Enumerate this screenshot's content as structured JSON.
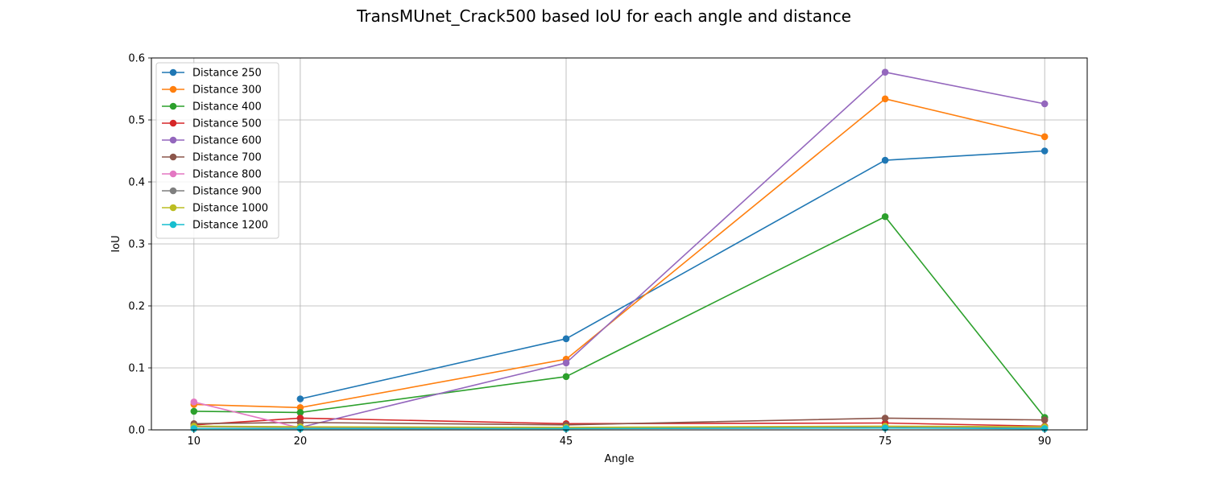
{
  "chart_data": {
    "type": "line",
    "title": "TransMUnet_Crack500 based IoU for each angle and distance",
    "xlabel": "Angle",
    "ylabel": "IoU",
    "x": [
      10,
      20,
      45,
      75,
      90
    ],
    "x_ticks": [
      "10",
      "20",
      "45",
      "75",
      "90"
    ],
    "xlim": [
      6,
      94
    ],
    "ylim": [
      0,
      0.6
    ],
    "y_ticks": [
      "0.0",
      "0.1",
      "0.2",
      "0.3",
      "0.4",
      "0.5",
      "0.6"
    ],
    "grid": true,
    "legend_position": "top-left",
    "series": [
      {
        "name": "Distance 250",
        "color": "#1f77b4",
        "values": [
          null,
          0.05,
          0.147,
          0.435,
          0.45
        ]
      },
      {
        "name": "Distance 300",
        "color": "#ff7f0e",
        "values": [
          0.041,
          0.036,
          0.114,
          0.534,
          0.473
        ]
      },
      {
        "name": "Distance 400",
        "color": "#2ca02c",
        "values": [
          0.03,
          0.028,
          0.086,
          0.344,
          0.02
        ]
      },
      {
        "name": "Distance 500",
        "color": "#d62728",
        "values": [
          0.008,
          0.019,
          0.01,
          0.011,
          0.006
        ]
      },
      {
        "name": "Distance 600",
        "color": "#9467bd",
        "values": [
          null,
          0.004,
          0.108,
          0.577,
          0.526
        ]
      },
      {
        "name": "Distance 700",
        "color": "#8c564b",
        "values": [
          0.01,
          0.012,
          0.008,
          0.019,
          0.016
        ]
      },
      {
        "name": "Distance 800",
        "color": "#e377c2",
        "values": [
          0.045,
          0.003,
          null,
          null,
          null
        ]
      },
      {
        "name": "Distance 900",
        "color": "#7f7f7f",
        "values": [
          0.005,
          0.004,
          0.003,
          0.005,
          0.004
        ]
      },
      {
        "name": "Distance 1000",
        "color": "#bcbd22",
        "values": [
          0.006,
          0.005,
          0.004,
          0.006,
          0.005
        ]
      },
      {
        "name": "Distance 1200",
        "color": "#17becf",
        "values": [
          0.002,
          0.002,
          0.002,
          0.003,
          0.002
        ]
      }
    ]
  }
}
